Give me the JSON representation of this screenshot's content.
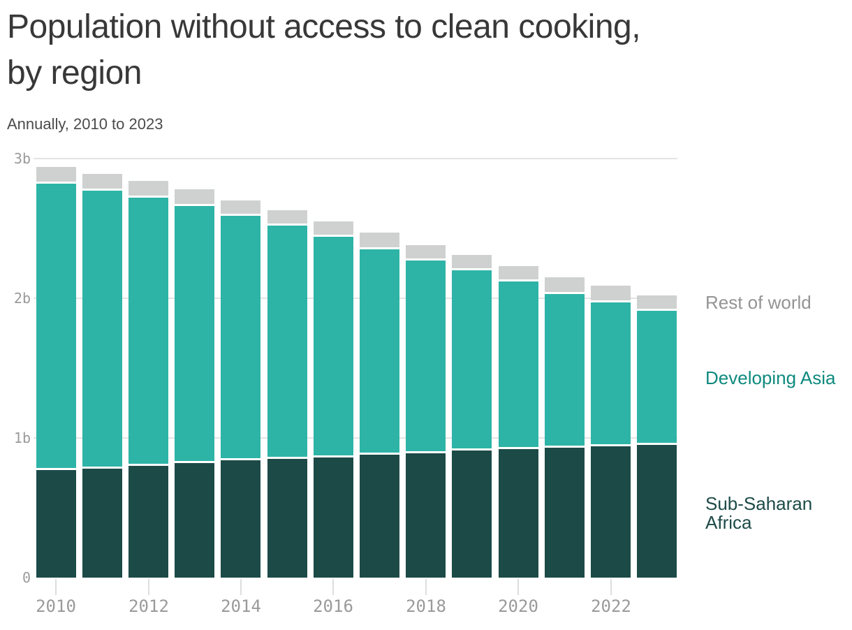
{
  "header": {
    "title": "Population without access to clean cooking,\nby region",
    "subtitle": "Annually, 2010 to 2023"
  },
  "chart_data": {
    "type": "bar",
    "stacked": true,
    "title": "Population without access to clean cooking, by region",
    "subtitle": "Annually, 2010 to 2023",
    "unit": "billions of people",
    "categories": [
      2010,
      2011,
      2012,
      2013,
      2014,
      2015,
      2016,
      2017,
      2018,
      2019,
      2020,
      2021,
      2022,
      2023
    ],
    "series": [
      {
        "name": "Sub-Saharan Africa",
        "color": "#1c4a47",
        "label_color": "#1d4b48",
        "values": [
          0.77,
          0.78,
          0.8,
          0.82,
          0.84,
          0.85,
          0.86,
          0.88,
          0.89,
          0.91,
          0.92,
          0.93,
          0.94,
          0.95
        ]
      },
      {
        "name": "Developing Asia",
        "color": "#2db4a7",
        "label_color": "#0e8a7e",
        "values": [
          2.05,
          1.99,
          1.92,
          1.84,
          1.75,
          1.67,
          1.58,
          1.47,
          1.38,
          1.29,
          1.2,
          1.1,
          1.03,
          0.96
        ]
      },
      {
        "name": "Rest of world",
        "color": "#cfd0d0",
        "label_color": "#949494",
        "values": [
          0.12,
          0.12,
          0.12,
          0.12,
          0.11,
          0.11,
          0.11,
          0.12,
          0.11,
          0.11,
          0.11,
          0.12,
          0.12,
          0.11
        ]
      }
    ],
    "ylim": [
      0,
      3
    ],
    "y_ticks": [
      {
        "value": 0,
        "label": "0"
      },
      {
        "value": 1,
        "label": "1b"
      },
      {
        "value": 2,
        "label": "2b"
      },
      {
        "value": 3,
        "label": "3b"
      }
    ],
    "x_tick_labels": [
      "2010",
      "2012",
      "2014",
      "2016",
      "2018",
      "2020",
      "2022"
    ],
    "grid": "horizontal",
    "legend_position": "right"
  }
}
